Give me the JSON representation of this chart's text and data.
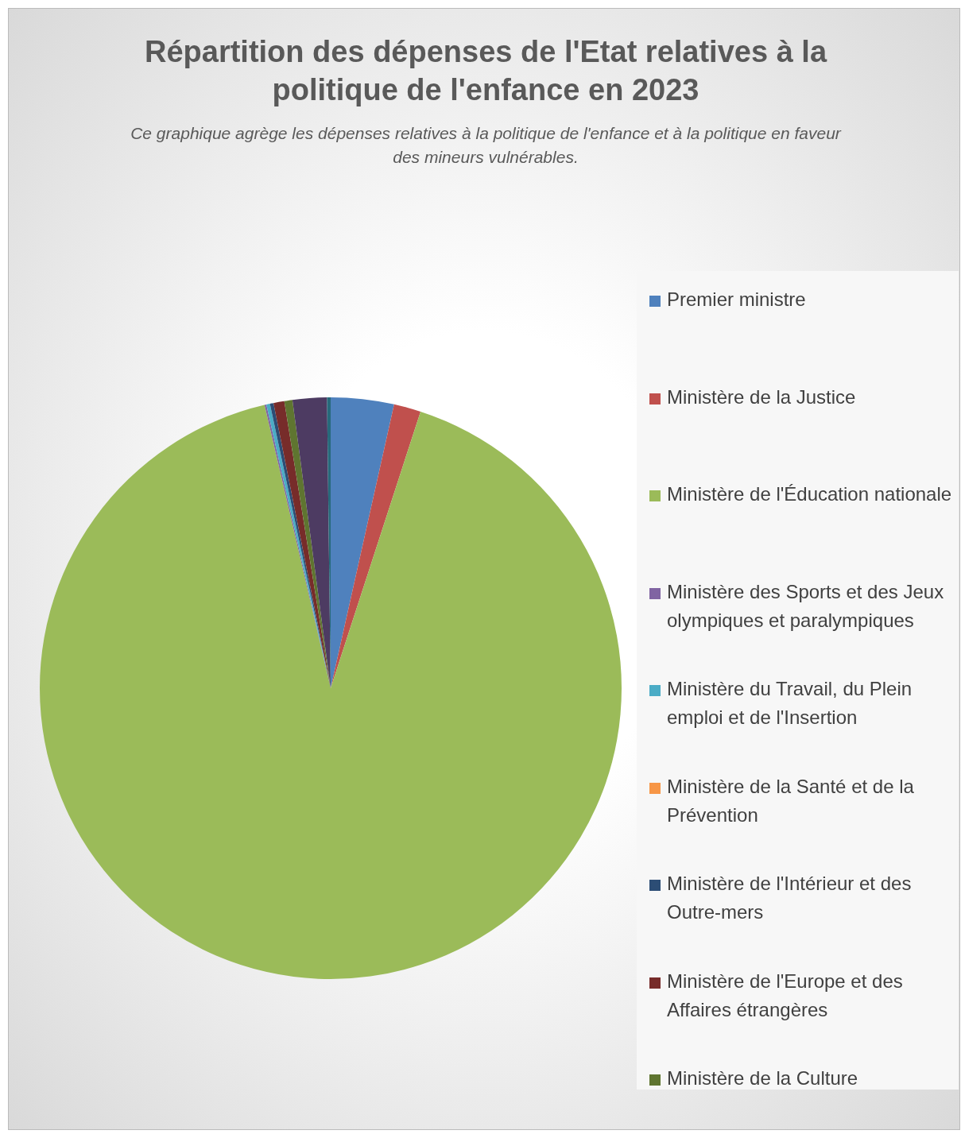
{
  "chart_data": {
    "type": "pie",
    "title": "Répartition des dépenses de l'Etat relatives à la politique de l'enfance en 2023",
    "subtitle": "Ce graphique agrège  les dépenses relatives à la politique de l'enfance et à la politique en faveur des mineurs vulnérables.",
    "categories": [
      "Premier ministre",
      "Ministère de la Justice",
      "Ministère de l'Éducation nationale",
      "Ministère des Sports et des Jeux olympiques et paralympiques",
      "Ministère du Travail, du Plein emploi et de l'Insertion",
      "Ministère de la Santé et de la Prévention",
      "Ministère de l'Intérieur et des Outre-mers",
      "Ministère de l'Europe et des Affaires étrangères",
      "Ministère de la Culture",
      null,
      null
    ],
    "values": [
      3.5,
      1.5,
      91.35,
      0.1,
      0.2,
      0,
      0.2,
      0.6,
      0.45,
      1.9,
      0.2
    ],
    "colors": [
      "#4f81bd",
      "#c0504d",
      "#9bbb59",
      "#8064a2",
      "#4bacc6",
      "#f79646",
      "#2c4d75",
      "#772c2a",
      "#5f7530",
      "#4d3b62",
      "#276a7c"
    ],
    "legend": "right"
  }
}
